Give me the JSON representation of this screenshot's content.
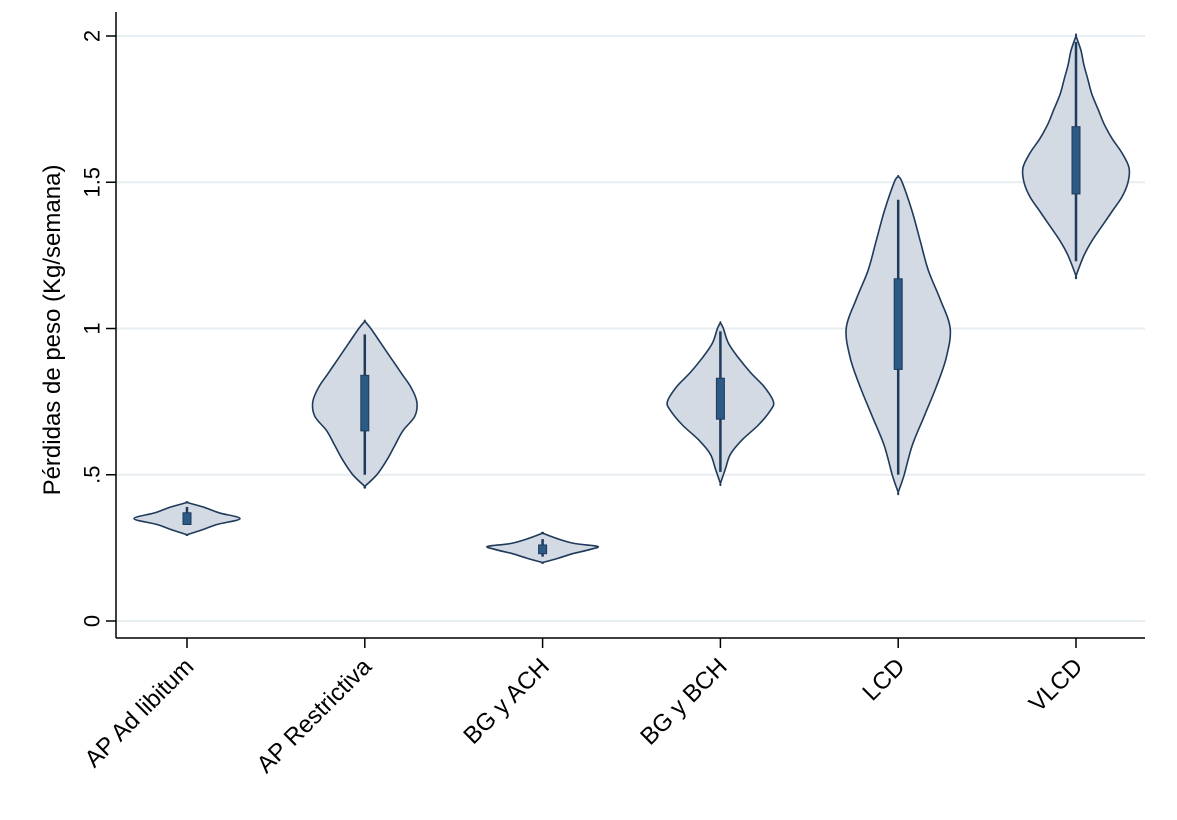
{
  "chart_data": {
    "type": "violin",
    "title": "",
    "xlabel": "",
    "ylabel": "Pérdidas de peso (Kg/semana)",
    "ylim": [
      0,
      2
    ],
    "yticks": [
      {
        "value": 0,
        "label": "0"
      },
      {
        "value": 0.5,
        "label": ".5"
      },
      {
        "value": 1,
        "label": "1"
      },
      {
        "value": 1.5,
        "label": "1.5"
      },
      {
        "value": 2,
        "label": "2"
      }
    ],
    "grid": "horizontal",
    "legend": "none",
    "colors": {
      "violin_fill": "#d3dae4",
      "violin_stroke": "#1f3a5a",
      "box": "#2b5a85",
      "whisker": "#1f3a5a",
      "grid": "#e7eef2"
    },
    "categories": [
      "AP Ad libitum",
      "AP Restrictiva",
      "BG y ACH",
      "BG y BCH",
      "LCD",
      "VLCD"
    ],
    "groups": [
      {
        "category": "AP Ad libitum",
        "whisker_low": 0.33,
        "q1": 0.33,
        "median": 0.35,
        "q3": 0.37,
        "whisker_high": 0.39,
        "density": [
          [
            0.295,
            0
          ],
          [
            0.31,
            14
          ],
          [
            0.33,
            30
          ],
          [
            0.35,
            53
          ],
          [
            0.37,
            32
          ],
          [
            0.39,
            16
          ],
          [
            0.405,
            0
          ]
        ]
      },
      {
        "category": "AP Restrictiva",
        "whisker_low": 0.5,
        "q1": 0.65,
        "median": 0.75,
        "q3": 0.84,
        "whisker_high": 0.98,
        "density": [
          [
            0.46,
            0
          ],
          [
            0.5,
            12
          ],
          [
            0.55,
            22
          ],
          [
            0.6,
            30
          ],
          [
            0.65,
            38
          ],
          [
            0.7,
            50
          ],
          [
            0.75,
            52
          ],
          [
            0.8,
            46
          ],
          [
            0.85,
            36
          ],
          [
            0.9,
            26
          ],
          [
            0.95,
            16
          ],
          [
            1.0,
            6
          ],
          [
            1.025,
            0
          ]
        ]
      },
      {
        "category": "BG y ACH",
        "whisker_low": 0.22,
        "q1": 0.23,
        "median": 0.24,
        "q3": 0.26,
        "whisker_high": 0.28,
        "density": [
          [
            0.2,
            0
          ],
          [
            0.215,
            16
          ],
          [
            0.23,
            30
          ],
          [
            0.245,
            48
          ],
          [
            0.255,
            55
          ],
          [
            0.265,
            32
          ],
          [
            0.28,
            16
          ],
          [
            0.3,
            0
          ]
        ]
      },
      {
        "category": "BG y BCH",
        "whisker_low": 0.51,
        "q1": 0.69,
        "median": 0.75,
        "q3": 0.83,
        "whisker_high": 0.99,
        "density": [
          [
            0.47,
            0
          ],
          [
            0.52,
            5
          ],
          [
            0.57,
            10
          ],
          [
            0.62,
            22
          ],
          [
            0.67,
            38
          ],
          [
            0.72,
            50
          ],
          [
            0.75,
            53
          ],
          [
            0.8,
            44
          ],
          [
            0.85,
            30
          ],
          [
            0.9,
            18
          ],
          [
            0.95,
            8
          ],
          [
            1.0,
            3
          ],
          [
            1.02,
            0
          ]
        ]
      },
      {
        "category": "LCD",
        "whisker_low": 0.5,
        "q1": 0.86,
        "median": 1.0,
        "q3": 1.17,
        "whisker_high": 1.44,
        "density": [
          [
            0.44,
            0
          ],
          [
            0.5,
            6
          ],
          [
            0.6,
            14
          ],
          [
            0.7,
            26
          ],
          [
            0.8,
            38
          ],
          [
            0.9,
            48
          ],
          [
            1.0,
            52
          ],
          [
            1.1,
            42
          ],
          [
            1.2,
            30
          ],
          [
            1.3,
            22
          ],
          [
            1.4,
            14
          ],
          [
            1.5,
            4
          ],
          [
            1.52,
            0
          ]
        ]
      },
      {
        "category": "VLCD",
        "whisker_low": 1.23,
        "q1": 1.46,
        "median": 1.56,
        "q3": 1.69,
        "whisker_high": 1.98,
        "density": [
          [
            1.18,
            0
          ],
          [
            1.25,
            8
          ],
          [
            1.3,
            16
          ],
          [
            1.35,
            26
          ],
          [
            1.4,
            36
          ],
          [
            1.45,
            46
          ],
          [
            1.5,
            52
          ],
          [
            1.55,
            53
          ],
          [
            1.6,
            46
          ],
          [
            1.65,
            36
          ],
          [
            1.7,
            28
          ],
          [
            1.75,
            22
          ],
          [
            1.8,
            16
          ],
          [
            1.85,
            12
          ],
          [
            1.9,
            8
          ],
          [
            1.95,
            5
          ],
          [
            2.0,
            0
          ]
        ]
      }
    ]
  }
}
